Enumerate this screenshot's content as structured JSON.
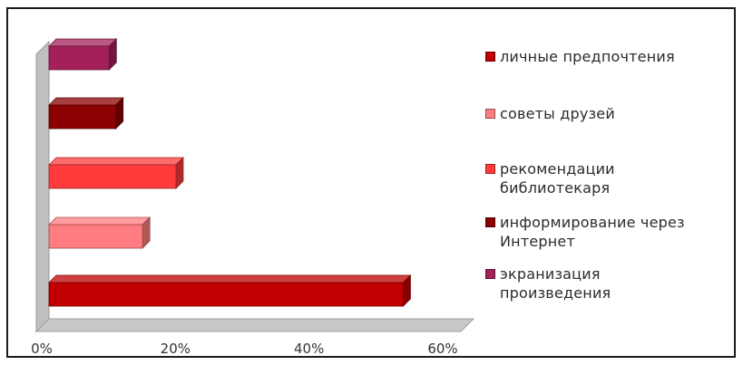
{
  "chart_data": {
    "type": "bar",
    "orientation": "horizontal",
    "three_d": true,
    "categories": [
      "личные предпочтения",
      "советы друзей",
      "рекомендации библиотекаря",
      "информирование через Интернет",
      "экранизация произведения"
    ],
    "values": [
      53,
      14,
      19,
      10,
      9
    ],
    "colors": [
      "#c00000",
      "#ff7c80",
      "#ff3b3b",
      "#8b0000",
      "#a3205a"
    ],
    "xlim": [
      0,
      60
    ],
    "xticks": [
      0,
      20,
      40,
      60
    ],
    "tick_format": "{v}%",
    "title": "",
    "xlabel": "",
    "ylabel": "",
    "grid": false,
    "legend": {
      "position": "right",
      "entries": [
        {
          "label": "личные предпочтения",
          "color": "#c00000"
        },
        {
          "label": "советы друзей",
          "color": "#ff7c80"
        },
        {
          "label": "рекомендации\nбиблиотекаря",
          "color": "#ff3b3b"
        },
        {
          "label": "информирование через\nИнтернет",
          "color": "#8b0000"
        },
        {
          "label": "экранизация\nпроизведения",
          "color": "#a3205a"
        }
      ]
    }
  }
}
